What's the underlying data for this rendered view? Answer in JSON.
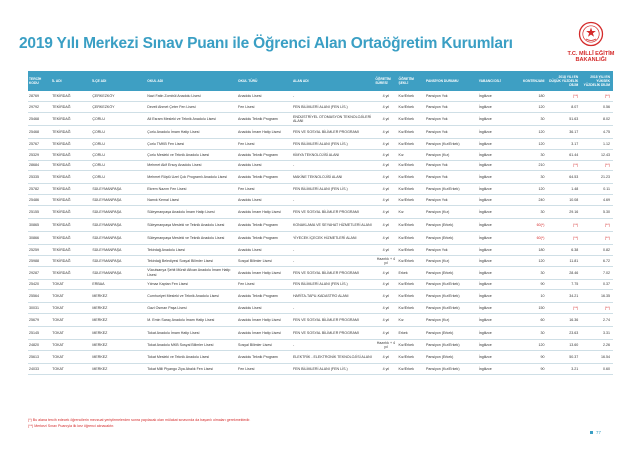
{
  "title": "2019 Yılı Merkezi Sınav Puanı ile Öğrenci Alan Ortaöğretim Kurumları",
  "logo": {
    "line1": "T.C. MİLLÎ EĞİTİM",
    "line2": "BAKANLIĞI",
    "icon": "ministry-emblem-icon"
  },
  "colors": {
    "accent": "#3e9fc3",
    "brand_red": "#d42a2a"
  },
  "table": {
    "headers": [
      "TERCİH KODU",
      "İL ADI",
      "İLÇE ADI",
      "OKUL ADI",
      "OKUL TÜRÜ",
      "ALAN ADI",
      "ÖĞRETİM SÜRESİ",
      "ÖĞRETİM ŞEKLİ",
      "PANSİYON DURUMU",
      "YABANCI DİLİ",
      "KONTENJANI",
      "2018 YILI EN DÜŞÜK YÜZDELİK DİLİM",
      "2018 YILI EN YÜKSEK YÜZDELİK DİLİM"
    ],
    "rows": [
      [
        "28769",
        "TEKİRDAĞ",
        "ÇERKEZKÖY",
        "Nazi Fatin Zombül Anadolu Lisesi",
        "Anadolu Lisesi",
        "-",
        "4 yıl",
        "Kız/Erkek",
        "Pansiyon Yok",
        "İngilizce",
        "180",
        "(**)",
        "(**)"
      ],
      [
        "29792",
        "TEKİRDAĞ",
        "ÇERKEZKÖY",
        "Develi Ahmet Çeter Fen Lisesi",
        "Fen Lisesi",
        "FEN BİLİMLERİ ALANI (FEN LİS.)",
        "4 yıl",
        "Kız/Erkek",
        "Pansiyon Yok",
        "İngilizce",
        "120",
        "8.07",
        "0.56"
      ],
      [
        "25468",
        "TEKİRDAĞ",
        "ÇORLU",
        "Ali Esram Mesleki ve Teknik Anadolu Lisesi",
        "Anadolu Teknik Programı",
        "ENDÜSTRİYEL OTOMASYON TEKNOLOJİLERİ ALANI",
        "4 yıl",
        "Kız/Erkek",
        "Pansiyon Yok",
        "İngilizce",
        "30",
        "51.63",
        "8.02"
      ],
      [
        "25468",
        "TEKİRDAĞ",
        "ÇORLU",
        "Çorlu Anadolu İmam Hatip Lisesi",
        "Anadolu İmam Hatip Lisesi",
        "FEN VE SOSYAL BİLİMLER PROGRAMI",
        "4 yıl",
        "Kız/Erkek",
        "Pansiyon Yok",
        "İngilizce",
        "120",
        "36.17",
        "4.75"
      ],
      [
        "25767",
        "TEKİRDAĞ",
        "ÇORLU",
        "Çorlu TMKB Fen Lisesi",
        "Fen Lisesi",
        "FEN BİLİMLERİ ALANI (FEN LİS.)",
        "4 yıl",
        "Kız/Erkek",
        "Pansiyon (Kız/Erkek)",
        "İngilizce",
        "120",
        "3.17",
        "1.12"
      ],
      [
        "25329",
        "TEKİRDAĞ",
        "ÇORLU",
        "Çorlu Mesleki ve Teknik Anadolu Lisesi",
        "Anadolu Teknik Programı",
        "KİMYA TEKNOLOJİSİ ALANI",
        "4 yıl",
        "Kız",
        "Pansiyon (Kız)",
        "İngilizce",
        "30",
        "61.44",
        "12.43"
      ],
      [
        "28684",
        "TEKİRDAĞ",
        "ÇORLU",
        "Mehmet Akif Ersoy Anadolu Lisesi",
        "Anadolu Lisesi",
        "-",
        "4 yıl",
        "Kız/Erkek",
        "Pansiyon Yok",
        "İngilizce",
        "210",
        "(**)",
        "(**)"
      ],
      [
        "25335",
        "TEKİRDAĞ",
        "ÇORLU",
        "Mehmet Rüştü Uzel Çok Programlı Anadolu Lisesi",
        "Anadolu Teknik Programı",
        "MAKİNE TEKNOLOJİSİ ALANI",
        "4 yıl",
        "Kız/Erkek",
        "Pansiyon Yok",
        "İngilizce",
        "30",
        "64.53",
        "21.23"
      ],
      [
        "25782",
        "TEKİRDAĞ",
        "SÜLEYMANPAŞA",
        "Ekrem Nazım Fen Lisesi",
        "Fen Lisesi",
        "FEN BİLİMLERİ ALANI (FEN LİS.)",
        "4 yıl",
        "Kız/Erkek",
        "Pansiyon (Kız/Erkek)",
        "İngilizce",
        "120",
        "1.48",
        "0.11"
      ],
      [
        "25486",
        "TEKİRDAĞ",
        "SÜLEYMANPAŞA",
        "Namık Kemal Lisesi",
        "Anadolu Lisesi",
        "-",
        "4 yıl",
        "Kız/Erkek",
        "Pansiyon Yok",
        "İngilizce",
        "240",
        "10.08",
        "4.69"
      ],
      [
        "25155",
        "TEKİRDAĞ",
        "SÜLEYMANPAŞA",
        "Süleymanpaşa Anadolu İmam Hatip Lisesi",
        "Anadolu İmam Hatip Lisesi",
        "FEN VE SOSYAL BİLİMLER PROGRAMI",
        "4 yıl",
        "Kız",
        "Pansiyon (Kız)",
        "İngilizce",
        "30",
        "29.16",
        "5.30"
      ],
      [
        "30865",
        "TEKİRDAĞ",
        "SÜLEYMANPAŞA",
        "Süleymanpaşa Mesleki ve Teknik Anadolu Lisesi",
        "Anadolu Teknik Programı",
        "KONAKLAMA VE SEYAHAT HİZMETLERİ ALANI",
        "4 yıl",
        "Kız/Erkek",
        "Pansiyon (Erkek)",
        "İngilizce",
        "60(*)",
        "(**)",
        "(**)"
      ],
      [
        "30866",
        "TEKİRDAĞ",
        "SÜLEYMANPAŞA",
        "Süleymanpaşa Mesleki ve Teknik Anadolu Lisesi",
        "Anadolu Teknik Programı",
        "YİYECEK İÇECEK HİZMETLERİ ALANI",
        "4 yıl",
        "Kız/Erkek",
        "Pansiyon (Erkek)",
        "İngilizce",
        "60(*)",
        "(**)",
        "(**)"
      ],
      [
        "25259",
        "TEKİRDAĞ",
        "SÜLEYMANPAŞA",
        "Tekirdağ Anadolu Lisesi",
        "Anadolu Lisesi",
        "-",
        "4 yıl",
        "Kız/Erkek",
        "Pansiyon Yok",
        "İngilizce",
        "180",
        "6.38",
        "0.82"
      ],
      [
        "25988",
        "TEKİRDAĞ",
        "SÜLEYMANPAŞA",
        "Tekirdağ Belediyesi Sosyal Bilimler Lisesi",
        "Sosyal Bilimler Lisesi",
        "-",
        "Hazırlık + 4 yıl",
        "Kız/Erkek",
        "Pansiyon (Kız)",
        "İngilizce",
        "120",
        "11.81",
        "6.72"
      ],
      [
        "29287",
        "TEKİRDAĞ",
        "SÜLEYMANPAŞA",
        "Vücutsarıya Şehit Mürsit Afican Anadolu İmam Hatip Lisesi",
        "Anadolu İmam Hatip Lisesi",
        "FEN VE SOSYAL BİLİMLER PROGRAMI",
        "4 yıl",
        "Erkek",
        "Pansiyon (Erkek)",
        "İngilizce",
        "30",
        "28.46",
        "7.02"
      ],
      [
        "25420",
        "TOKAT",
        "ERBAA",
        "Yılmaz Kaptan Fen Lisesi",
        "Fen Lisesi",
        "FEN BİLİMLERİ ALANI (FEN LİS.)",
        "4 yıl",
        "Kız/Erkek",
        "Pansiyon (Kız/Erkek)",
        "İngilizce",
        "90",
        "7.75",
        "0.37"
      ],
      [
        "25564",
        "TOKAT",
        "MERKEZ",
        "Cumhuriyet Mesleki ve Teknik Anadolu Lisesi",
        "Anadolu Teknik Programı",
        "HARİTA-TAPU-KADASTRO ALANI",
        "4 yıl",
        "Kız/Erkek",
        "Pansiyon (Kız/Erkek)",
        "İngilizce",
        "10",
        "34.21",
        "16.35"
      ],
      [
        "30031",
        "TOKAT",
        "MERKEZ",
        "Gazi Osman Paşa Lisesi",
        "Anadolu Lisesi",
        "-",
        "4 yıl",
        "Kız/Erkek",
        "Pansiyon (Kız/Erkek)",
        "İngilizce",
        "150",
        "(**)",
        "(**)"
      ],
      [
        "25679",
        "TOKAT",
        "MERKEZ",
        "M. Emin Saraç Anadolu İmam Hatip Lisesi",
        "Anadolu İmam Hatip Lisesi",
        "FEN VE SOSYAL BİLİMLER PROGRAMI",
        "4 yıl",
        "Kız",
        "Pansiyon (Kız)",
        "İngilizce",
        "60",
        "16.36",
        "2.74"
      ],
      [
        "25145",
        "TOKAT",
        "MERKEZ",
        "Tokat Anadolu İmam Hatip Lisesi",
        "Anadolu İmam Hatip Lisesi",
        "FEN VE SOSYAL BİLİMLER PROGRAMI",
        "4 yıl",
        "Erkek",
        "Pansiyon (Erkek)",
        "İngilizce",
        "30",
        "23.63",
        "3.31"
      ],
      [
        "24820",
        "TOKAT",
        "MERKEZ",
        "Tokat Anadolu MKB Sosyal Bilimler Lisesi",
        "Sosyal Bilimler Lisesi",
        "-",
        "Hazırlık + 4 yıl",
        "Kız/Erkek",
        "Pansiyon (Kız/Erkek)",
        "İngilizce",
        "120",
        "13.60",
        "2.26"
      ],
      [
        "25613",
        "TOKAT",
        "MERKEZ",
        "Tokat Mesleki ve Teknik Anadolu Lisesi",
        "Anadolu Teknik Programı",
        "ELEKTRİK - ELEKTRONİK TEKNOLOJİSİ ALANI",
        "4 yıl",
        "Kız/Erkek",
        "Pansiyon (Erkek)",
        "İngilizce",
        "90",
        "50.37",
        "16.54"
      ],
      [
        "24033",
        "TOKAT",
        "MERKEZ",
        "Tokat Milli Piyango Ziya Abalık Fen Lisesi",
        "Fen Lisesi",
        "FEN BİLİMLERİ ALANI (FEN LİS.)",
        "4 yıl",
        "Kız/Erkek",
        "Pansiyon (Kız/Erkek)",
        "İngilizce",
        "90",
        "3.21",
        "0.60"
      ]
    ]
  },
  "footnotes": [
    "(*) Bu alana tercih edecek öğrencilerin mevzuat yeriştirmelerden sonra yapılacak olan mülakat sınavında da başarılı olmaları gerekmektedir.",
    "(**) Merkezi Sınav Puanıyla ilk kez öğrenci alınacaktır."
  ],
  "page_number": "77"
}
